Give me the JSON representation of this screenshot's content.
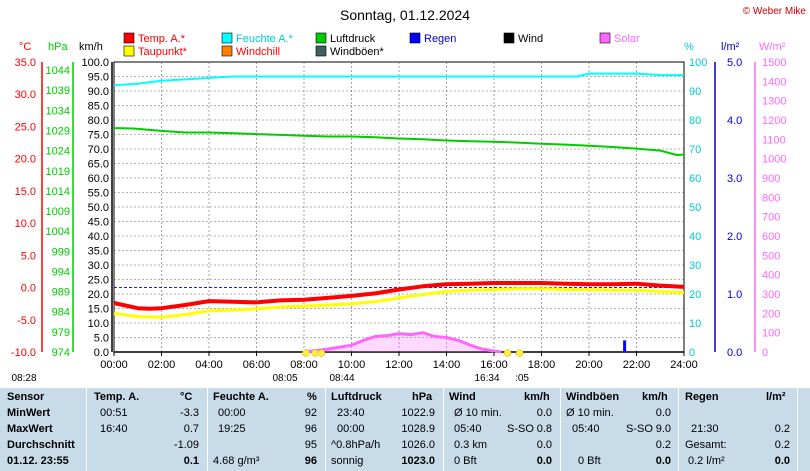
{
  "header": {
    "title": "Sonntag, 01.12.2024",
    "credit": "© Weber Mike"
  },
  "chart_data": {
    "type": "line",
    "title": "Sonntag, 01.12.2024",
    "x_ticks": [
      "00:00",
      "02:00",
      "04:00",
      "06:00",
      "08:00",
      "10:00",
      "12:00",
      "14:00",
      "16:00",
      "18:00",
      "20:00",
      "22:00",
      "24:00"
    ],
    "x_range_hours": [
      0,
      24
    ],
    "grid": true,
    "axes": {
      "temp_c": {
        "unit": "°C",
        "range": [
          -10,
          35
        ],
        "ticks": [
          "35.0",
          "30.0",
          "25.0",
          "20.0",
          "15.0",
          "10.0",
          "5.0",
          "0.0",
          "-5.0",
          "-10.0"
        ],
        "color": "#ff0000"
      },
      "pressure_hpa": {
        "unit": "hPa",
        "range": [
          974,
          1046
        ],
        "ticks": [
          "1044",
          "1039",
          "1034",
          "1029",
          "1024",
          "1019",
          "1014",
          "1009",
          "1004",
          "999",
          "994",
          "989",
          "984",
          "979",
          "974"
        ],
        "color": "#00cc00"
      },
      "wind_kmh": {
        "unit": "km/h",
        "range": [
          0,
          100
        ],
        "ticks": [
          "100.0",
          "95.0",
          "90.0",
          "85.0",
          "80.0",
          "75.0",
          "70.0",
          "65.0",
          "60.0",
          "55.0",
          "50.0",
          "45.0",
          "40.0",
          "35.0",
          "30.0",
          "25.0",
          "20.0",
          "15.0",
          "10.0",
          "5.0",
          "0.0"
        ],
        "color": "#000000"
      },
      "humidity_pct": {
        "unit": "%",
        "range": [
          0,
          100
        ],
        "ticks": [
          "100",
          "90",
          "80",
          "70",
          "60",
          "50",
          "40",
          "30",
          "20",
          "10",
          "0"
        ],
        "color": "#00cccc"
      },
      "rain_lm2": {
        "unit": "l/m²",
        "range": [
          0,
          5
        ],
        "ticks": [
          "5.0",
          "4.0",
          "3.0",
          "2.0",
          "1.0",
          "0.0"
        ],
        "color": "#0000cc"
      },
      "solar_wm2": {
        "unit": "W/m²",
        "range": [
          0,
          1500
        ],
        "ticks": [
          "1500",
          "1400",
          "1300",
          "1200",
          "1100",
          "1000",
          "900",
          "800",
          "700",
          "600",
          "500",
          "400",
          "300",
          "200",
          "100",
          "0"
        ],
        "color": "#ff66ff"
      }
    },
    "legend": [
      {
        "name": "Temp. A.*",
        "color": "#ff0000",
        "label_color": "#ff0000"
      },
      {
        "name": "Feuchte A.*",
        "color": "#00ffff",
        "label_color": "#00cccc"
      },
      {
        "name": "Luftdruck",
        "color": "#00cc00",
        "label_color": "#000000"
      },
      {
        "name": "Regen",
        "color": "#0000ff",
        "label_color": "#0000cc"
      },
      {
        "name": "Wind",
        "color": "#000000",
        "label_color": "#000000"
      },
      {
        "name": "Solar",
        "color": "#ff66ff",
        "label_color": "#ff66ff"
      },
      {
        "name": "Taupunkt*",
        "color": "#ffff00",
        "label_color": "#ff0000"
      },
      {
        "name": "Windchill",
        "color": "#ff8000",
        "label_color": "#ff0000"
      },
      {
        "name": "Windböen*",
        "color": "#406060",
        "label_color": "#000000"
      }
    ],
    "series": [
      {
        "name": "Temp. A.*",
        "axis": "temp_c",
        "color": "#ff0000",
        "x": [
          0,
          1,
          1.5,
          2,
          3,
          4,
          5,
          6,
          7,
          8,
          9,
          10,
          11,
          12,
          13,
          14,
          15,
          16,
          17,
          18,
          19,
          20,
          21,
          22,
          23,
          24
        ],
        "values": [
          -2.4,
          -3.2,
          -3.3,
          -3.2,
          -2.7,
          -2.1,
          -2.2,
          -2.3,
          -2.0,
          -1.9,
          -1.6,
          -1.3,
          -0.9,
          -0.3,
          0.2,
          0.5,
          0.6,
          0.7,
          0.7,
          0.7,
          0.6,
          0.5,
          0.5,
          0.6,
          0.3,
          0.1
        ]
      },
      {
        "name": "Taupunkt*",
        "axis": "temp_c",
        "color": "#ffff00",
        "x": [
          0,
          1,
          2,
          3,
          4,
          5,
          6,
          7,
          8,
          9,
          10,
          11,
          12,
          13,
          14,
          15,
          16,
          17,
          18,
          19,
          20,
          21,
          22,
          23,
          24
        ],
        "values": [
          -4.0,
          -4.5,
          -4.6,
          -4.2,
          -3.6,
          -3.5,
          -3.3,
          -3.0,
          -2.9,
          -2.7,
          -2.5,
          -2.2,
          -1.6,
          -1.1,
          -0.6,
          -0.4,
          -0.3,
          -0.2,
          -0.2,
          -0.3,
          -0.3,
          -0.4,
          -0.4,
          -0.6,
          -0.8
        ]
      },
      {
        "name": "Feuchte A.*",
        "axis": "humidity_pct",
        "color": "#00ffff",
        "x": [
          0,
          1,
          2,
          3,
          4,
          5,
          6,
          7,
          8,
          9,
          10,
          11,
          12,
          13,
          14,
          15,
          16,
          17,
          18,
          19,
          19.5,
          20,
          21,
          22,
          23,
          24
        ],
        "values": [
          92,
          92.5,
          93.5,
          94,
          94.5,
          95,
          95,
          95,
          95,
          95,
          95,
          95,
          95,
          95,
          95,
          95,
          95,
          95,
          95,
          95,
          95,
          96,
          96,
          96,
          95.5,
          95.5
        ]
      },
      {
        "name": "Luftdruck",
        "axis": "pressure_hpa",
        "color": "#00cc00",
        "x": [
          0,
          0.8,
          2,
          3,
          4,
          5,
          6,
          7,
          8,
          9,
          10,
          11,
          12,
          13,
          14,
          15,
          16,
          17,
          18,
          19,
          20,
          21,
          22,
          23,
          23.7,
          24
        ],
        "values": [
          1029.6,
          1029.5,
          1028.9,
          1028.5,
          1028.5,
          1028.3,
          1028.1,
          1027.9,
          1027.7,
          1027.5,
          1027.5,
          1027.3,
          1027.0,
          1026.8,
          1026.5,
          1026.3,
          1026.2,
          1026.0,
          1025.7,
          1025.5,
          1025.2,
          1024.9,
          1024.5,
          1024.0,
          1022.9,
          1023.0
        ]
      },
      {
        "name": "Wind",
        "axis": "wind_kmh",
        "color": "#000000",
        "x": [
          0,
          24
        ],
        "values": [
          0,
          0
        ]
      },
      {
        "name": "Solar",
        "axis": "solar_wm2",
        "color": "#ff66ff",
        "x": [
          8,
          9,
          10,
          10.5,
          11,
          11.5,
          12,
          12.5,
          13,
          13.5,
          14,
          14.5,
          15,
          15.5,
          16,
          16.3
        ],
        "values": [
          0,
          15,
          35,
          60,
          80,
          85,
          95,
          90,
          100,
          80,
          75,
          60,
          35,
          15,
          5,
          0
        ]
      },
      {
        "name": "Regen",
        "axis": "rain_lm2",
        "color": "#0000ff",
        "x": [
          21.5
        ],
        "values": [
          0.2
        ]
      }
    ],
    "zero_line_temp": 0.0,
    "sun_markers": [
      {
        "label": "08:28",
        "hour": 8.47
      },
      {
        "label": "08:05",
        "hour": 8.08
      },
      {
        "label": "08:44",
        "hour": 8.73
      },
      {
        "label": "16:34",
        "hour": 16.57
      },
      {
        "label": ":05",
        "hour": 17.08
      }
    ]
  },
  "table": {
    "header": {
      "sensor": "Sensor",
      "temp": "Temp. A.",
      "temp_unit": "°C",
      "hum": "Feuchte A.",
      "hum_unit": "%",
      "press": "Luftdruck",
      "press_unit": "hPa",
      "wind": "Wind",
      "wind_unit": "km/h",
      "gust": "Windböen",
      "gust_unit": "km/h",
      "rain": "Regen",
      "rain_unit": "l/m²"
    },
    "min": {
      "label": "MinWert",
      "temp_time": "00:51",
      "temp_val": "-3.3",
      "hum_time": "00:00",
      "hum_val": "92",
      "press_time": "23:40",
      "press_val": "1022.9",
      "wind_label": "Ø 10 min.",
      "wind_val": "0.0",
      "gust_label": "Ø 10 min.",
      "gust_val": "0.0",
      "rain_time": "",
      "rain_val": ""
    },
    "max": {
      "label": "MaxWert",
      "temp_time": "16:40",
      "temp_val": "0.7",
      "hum_time": "19:25",
      "hum_val": "96",
      "press_time": "00:00",
      "press_val": "1028.9",
      "wind_time": "05:40",
      "wind_dir": "S-SO",
      "wind_val": "0.8",
      "gust_time": "05:40",
      "gust_dir": "S-SO",
      "gust_val": "9.0",
      "rain_time": "21:30",
      "rain_val": "0.2"
    },
    "avg": {
      "label": "Durchschnitt",
      "temp_val": "-1.09",
      "hum_val": "95",
      "press_trend": "^0.8hPa/h",
      "press_val": "1026.0",
      "wind_km": "0.3 km",
      "wind_val": "0.0",
      "gust_val": "0.2",
      "rain_label": "Gesamt:",
      "rain_val": "0.2"
    },
    "current": {
      "label": "01.12. 23:55",
      "temp_val": "0.1",
      "dew": "4.68 g/m³",
      "hum_val": "96",
      "press_label": "sonnig",
      "press_val": "1023.0",
      "wind_bft": "0 Bft",
      "wind_val": "0.0",
      "gust_bft": "0 Bft",
      "gust_val": "0.0",
      "rain_rate": "0.2 l/m²",
      "rain_val": "0.0"
    }
  }
}
